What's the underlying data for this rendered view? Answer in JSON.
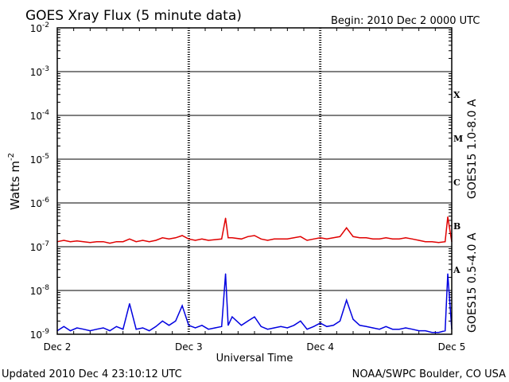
{
  "chart_data": {
    "type": "line",
    "title": "GOES Xray Flux (5 minute data)",
    "begin_label": "Begin:  2010 Dec 2 0000 UTC",
    "ylabel": "Watts m",
    "ylabel_exp": "-2",
    "xlabel": "Universal Time",
    "yscale": "log",
    "ylim": [
      1e-09,
      0.01
    ],
    "xlim": [
      0,
      3
    ],
    "grid": true,
    "categories": [
      "Dec 2",
      "Dec 3",
      "Dec 4",
      "Dec 5"
    ],
    "y_ticks": [
      {
        "exp": "-9",
        "value": 1e-09
      },
      {
        "exp": "-8",
        "value": 1e-08
      },
      {
        "exp": "-7",
        "value": 1e-07
      },
      {
        "exp": "-6",
        "value": 1e-06
      },
      {
        "exp": "-5",
        "value": 1e-05
      },
      {
        "exp": "-4",
        "value": 0.0001
      },
      {
        "exp": "-3",
        "value": 0.001
      },
      {
        "exp": "-2",
        "value": 0.01
      }
    ],
    "flare_classes": [
      {
        "label": "X",
        "value": 0.0003
      },
      {
        "label": "M",
        "value": 3e-05
      },
      {
        "label": "C",
        "value": 3e-06
      },
      {
        "label": "B",
        "value": 3e-07
      },
      {
        "label": "A",
        "value": 3e-08
      }
    ],
    "series": [
      {
        "name": "GOES15 1.0-8.0 A",
        "color": "#e00000",
        "x": [
          0.0,
          0.05,
          0.1,
          0.15,
          0.2,
          0.25,
          0.3,
          0.35,
          0.4,
          0.45,
          0.5,
          0.55,
          0.6,
          0.65,
          0.7,
          0.75,
          0.8,
          0.85,
          0.9,
          0.95,
          1.0,
          1.05,
          1.1,
          1.15,
          1.2,
          1.25,
          1.28,
          1.3,
          1.33,
          1.4,
          1.45,
          1.5,
          1.55,
          1.6,
          1.65,
          1.7,
          1.75,
          1.8,
          1.85,
          1.9,
          1.95,
          2.0,
          2.05,
          2.1,
          2.15,
          2.2,
          2.25,
          2.3,
          2.35,
          2.4,
          2.45,
          2.5,
          2.55,
          2.6,
          2.65,
          2.7,
          2.75,
          2.8,
          2.85,
          2.9,
          2.95,
          2.97,
          3.0
        ],
        "values": [
          1.3e-07,
          1.4e-07,
          1.3e-07,
          1.35e-07,
          1.3e-07,
          1.25e-07,
          1.3e-07,
          1.3e-07,
          1.2e-07,
          1.3e-07,
          1.3e-07,
          1.5e-07,
          1.3e-07,
          1.4e-07,
          1.3e-07,
          1.4e-07,
          1.6e-07,
          1.5e-07,
          1.6e-07,
          1.8e-07,
          1.5e-07,
          1.4e-07,
          1.5e-07,
          1.4e-07,
          1.45e-07,
          1.5e-07,
          4.5e-07,
          1.6e-07,
          1.6e-07,
          1.5e-07,
          1.7e-07,
          1.8e-07,
          1.5e-07,
          1.4e-07,
          1.5e-07,
          1.5e-07,
          1.5e-07,
          1.6e-07,
          1.7e-07,
          1.4e-07,
          1.5e-07,
          1.6e-07,
          1.5e-07,
          1.6e-07,
          1.7e-07,
          2.7e-07,
          1.7e-07,
          1.6e-07,
          1.6e-07,
          1.5e-07,
          1.5e-07,
          1.6e-07,
          1.5e-07,
          1.5e-07,
          1.6e-07,
          1.5e-07,
          1.4e-07,
          1.3e-07,
          1.3e-07,
          1.25e-07,
          1.3e-07,
          4.8e-07,
          1.3e-07
        ]
      },
      {
        "name": "GOES15 0.5-4.0 A",
        "color": "#0000e0",
        "x": [
          0.0,
          0.05,
          0.1,
          0.15,
          0.2,
          0.25,
          0.3,
          0.35,
          0.4,
          0.45,
          0.5,
          0.55,
          0.6,
          0.65,
          0.7,
          0.75,
          0.8,
          0.85,
          0.9,
          0.95,
          1.0,
          1.05,
          1.1,
          1.15,
          1.2,
          1.25,
          1.28,
          1.3,
          1.33,
          1.4,
          1.45,
          1.5,
          1.55,
          1.6,
          1.65,
          1.7,
          1.75,
          1.8,
          1.85,
          1.9,
          1.95,
          2.0,
          2.05,
          2.1,
          2.15,
          2.2,
          2.25,
          2.3,
          2.35,
          2.4,
          2.45,
          2.5,
          2.55,
          2.6,
          2.65,
          2.7,
          2.75,
          2.8,
          2.85,
          2.9,
          2.95,
          2.97,
          3.0
        ],
        "values": [
          1.2e-09,
          1.5e-09,
          1.2e-09,
          1.4e-09,
          1.3e-09,
          1.2e-09,
          1.3e-09,
          1.4e-09,
          1.2e-09,
          1.5e-09,
          1.3e-09,
          5e-09,
          1.3e-09,
          1.4e-09,
          1.2e-09,
          1.5e-09,
          2e-09,
          1.6e-09,
          2e-09,
          4.5e-09,
          1.6e-09,
          1.4e-09,
          1.6e-09,
          1.3e-09,
          1.4e-09,
          1.5e-09,
          2.4e-08,
          1.6e-09,
          2.5e-09,
          1.6e-09,
          2e-09,
          2.5e-09,
          1.5e-09,
          1.3e-09,
          1.4e-09,
          1.5e-09,
          1.4e-09,
          1.6e-09,
          2e-09,
          1.3e-09,
          1.5e-09,
          1.8e-09,
          1.5e-09,
          1.6e-09,
          2e-09,
          6e-09,
          2.2e-09,
          1.6e-09,
          1.5e-09,
          1.4e-09,
          1.3e-09,
          1.5e-09,
          1.3e-09,
          1.3e-09,
          1.4e-09,
          1.3e-09,
          1.2e-09,
          1.2e-09,
          1.1e-09,
          1.1e-09,
          1.2e-09,
          2.4e-08,
          1.3e-09
        ]
      }
    ]
  },
  "footer": {
    "updated": "Updated 2010 Dec  4 23:10:12 UTC",
    "credit": "NOAA/SWPC Boulder, CO USA"
  }
}
